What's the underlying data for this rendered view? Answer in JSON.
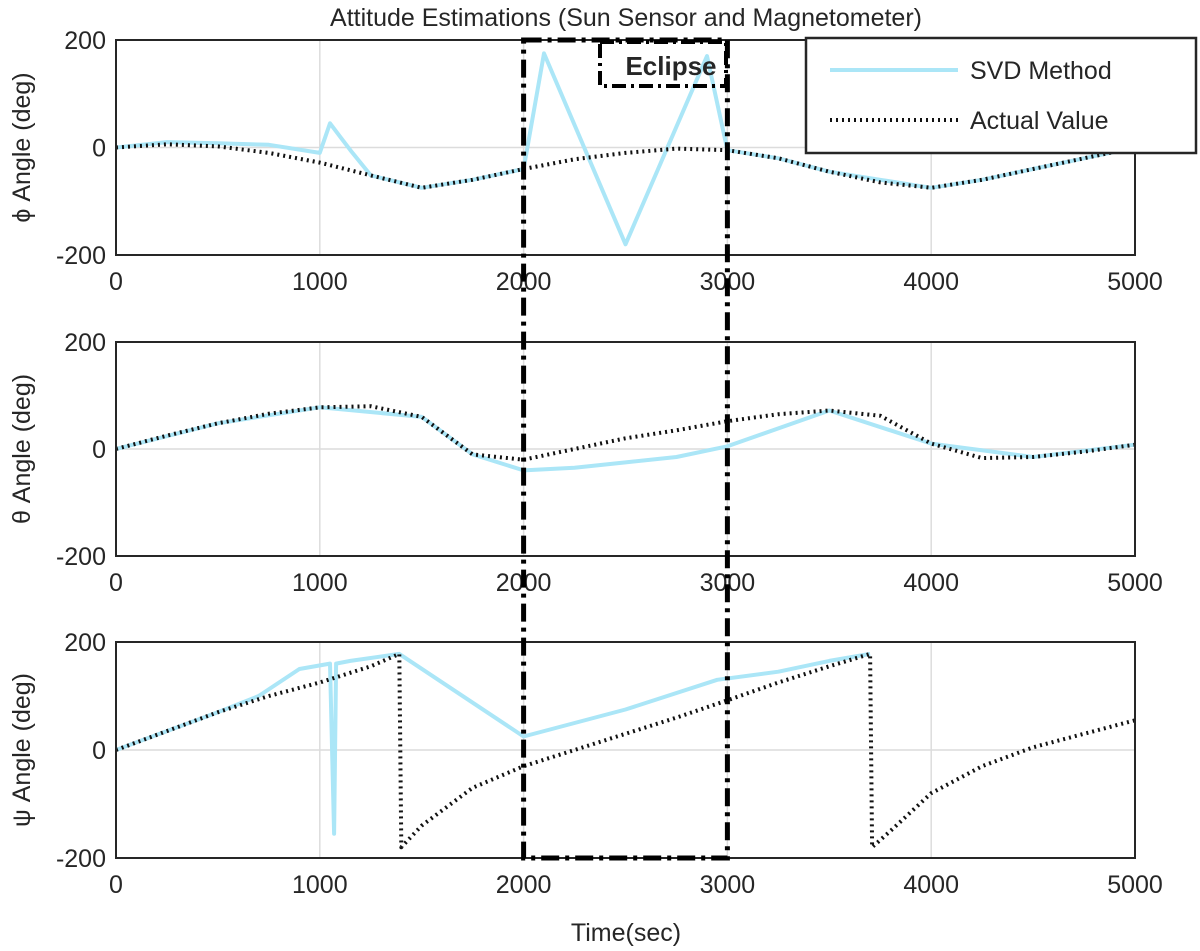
{
  "figure": {
    "title": "Attitude Estimations (Sun Sensor and Magnetometer)",
    "xlabel": "Time(sec)"
  },
  "legend": {
    "placement": "top-right",
    "entries": [
      {
        "label": "SVD Method",
        "color": "#abe6f7",
        "style": "solid"
      },
      {
        "label": "Actual Value",
        "color": "#111111",
        "style": "dotted"
      }
    ]
  },
  "eclipse": {
    "label": "Eclipse",
    "x_range": [
      2000,
      3000
    ]
  },
  "chart_data": [
    {
      "type": "line",
      "ylabel": "ϕ Angle (deg)",
      "xlim": [
        0,
        5000
      ],
      "ylim": [
        -200,
        200
      ],
      "x_ticks": [
        "0",
        "1000",
        "2000",
        "3000",
        "4000",
        "5000"
      ],
      "y_ticks": [
        "200",
        "0",
        "-200"
      ],
      "grid": true,
      "series": [
        {
          "name": "Actual Value",
          "x": [
            0,
            250,
            500,
            750,
            1000,
            1250,
            1500,
            1750,
            2000,
            2250,
            2500,
            2750,
            3000,
            3250,
            3500,
            3750,
            4000,
            4250,
            4500,
            4750,
            5000
          ],
          "y": [
            0,
            6,
            2,
            -10,
            -28,
            -52,
            -75,
            -60,
            -40,
            -22,
            -10,
            -2,
            -5,
            -20,
            -45,
            -65,
            -75,
            -60,
            -40,
            -20,
            0
          ]
        },
        {
          "name": "SVD Method",
          "x": [
            0,
            250,
            500,
            750,
            1000,
            1050,
            1100,
            1150,
            1250,
            1500,
            1750,
            2000,
            2100,
            2500,
            2900,
            3000,
            3250,
            3500,
            3750,
            4000,
            4250,
            4500,
            4750,
            5000
          ],
          "y": [
            0,
            10,
            8,
            5,
            -10,
            45,
            20,
            -5,
            -52,
            -75,
            -60,
            -40,
            175,
            -180,
            170,
            -5,
            -20,
            -45,
            -60,
            -75,
            -60,
            -40,
            -20,
            0
          ]
        }
      ]
    },
    {
      "type": "line",
      "ylabel": "θ Angle (deg)",
      "xlim": [
        0,
        5000
      ],
      "ylim": [
        -200,
        200
      ],
      "x_ticks": [
        "0",
        "1000",
        "2000",
        "3000",
        "4000",
        "5000"
      ],
      "y_ticks": [
        "200",
        "0",
        "-200"
      ],
      "grid": true,
      "series": [
        {
          "name": "Actual Value",
          "x": [
            0,
            250,
            500,
            750,
            1000,
            1250,
            1500,
            1750,
            2000,
            2250,
            2500,
            2750,
            3000,
            3250,
            3500,
            3750,
            4000,
            4250,
            4500,
            4750,
            5000
          ],
          "y": [
            0,
            25,
            48,
            66,
            78,
            80,
            60,
            -10,
            -20,
            0,
            20,
            35,
            52,
            65,
            72,
            62,
            10,
            -17,
            -15,
            -5,
            8
          ]
        },
        {
          "name": "SVD Method",
          "x": [
            0,
            500,
            1000,
            1500,
            1750,
            2000,
            2250,
            2500,
            2750,
            3000,
            3500,
            4000,
            4500,
            5000
          ],
          "y": [
            0,
            48,
            78,
            60,
            -10,
            -40,
            -35,
            -25,
            -15,
            5,
            72,
            10,
            -15,
            8
          ]
        }
      ]
    },
    {
      "type": "line",
      "ylabel": "ψ Angle (deg)",
      "xlim": [
        0,
        5000
      ],
      "ylim": [
        -200,
        200
      ],
      "x_ticks": [
        "0",
        "1000",
        "2000",
        "3000",
        "4000",
        "5000"
      ],
      "y_ticks": [
        "200",
        "0",
        "-200"
      ],
      "grid": true,
      "series": [
        {
          "name": "Actual Value",
          "x": [
            0,
            250,
            500,
            750,
            1000,
            1250,
            1390,
            1400,
            1500,
            1750,
            2000,
            2250,
            2500,
            2750,
            3000,
            3250,
            3500,
            3700,
            3710,
            3800,
            4000,
            4250,
            4500,
            4750,
            5000
          ],
          "y": [
            0,
            35,
            70,
            100,
            125,
            155,
            178,
            -180,
            -140,
            -70,
            -30,
            0,
            30,
            60,
            92,
            125,
            155,
            178,
            -180,
            -150,
            -80,
            -30,
            5,
            30,
            55
          ]
        },
        {
          "name": "SVD Method",
          "x": [
            0,
            500,
            700,
            900,
            1050,
            1070,
            1080,
            1150,
            1390,
            2000,
            2500,
            2950,
            3250,
            3500,
            3700
          ],
          "y": [
            0,
            70,
            100,
            150,
            160,
            -155,
            160,
            165,
            178,
            25,
            75,
            130,
            145,
            165,
            178
          ]
        }
      ]
    }
  ]
}
